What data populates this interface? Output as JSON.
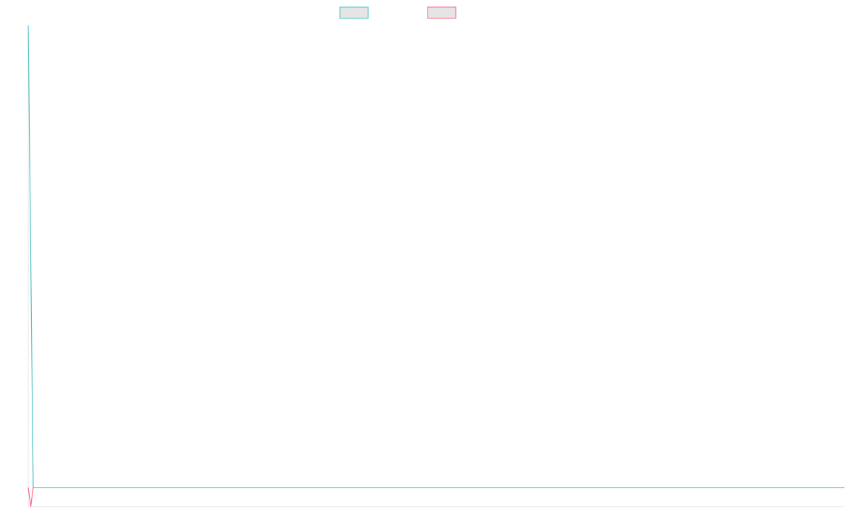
{
  "colors": {
    "series_teal": "#4bc0c0",
    "series_pink": "#ff6384",
    "legend_fill": "#e5e5e5",
    "axis": "#e6e6e6",
    "background": "#ffffff"
  },
  "chart_data": {
    "type": "line",
    "grid": false,
    "legend_position": "top-center",
    "x": [
      0,
      1,
      2,
      3
    ],
    "xlim": [
      0,
      164
    ],
    "ylim": [
      -1,
      24
    ],
    "series": [
      {
        "color": "#4bc0c0",
        "values": [
          24,
          0,
          0,
          0
        ],
        "x": [
          0,
          1,
          2,
          164
        ]
      },
      {
        "color": "#ff6384",
        "values": [
          0,
          -1,
          0,
          0
        ],
        "x": [
          0,
          0.5,
          1,
          1.2
        ]
      }
    ]
  }
}
